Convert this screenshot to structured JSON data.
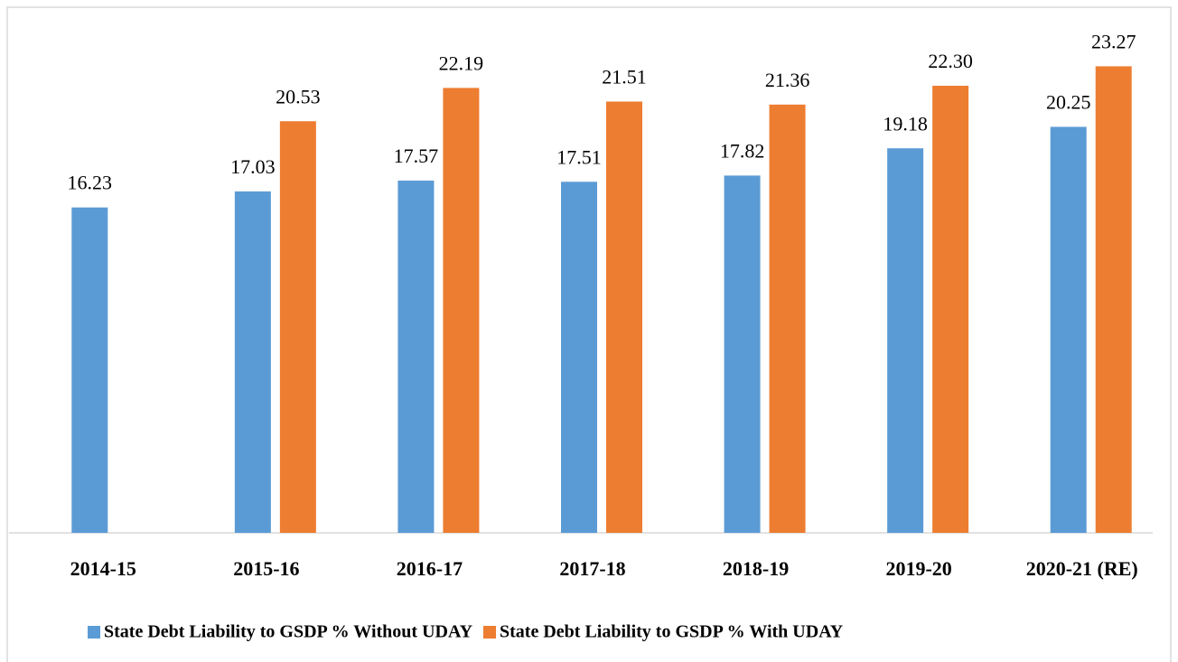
{
  "chart_data": {
    "type": "bar",
    "categories": [
      "2014-15",
      "2015-16",
      "2016-17",
      "2017-18",
      "2018-19",
      "2019-20",
      "2020-21 (RE)"
    ],
    "series": [
      {
        "name": "State Debt Liability to GSDP % Without UDAY",
        "color": "#5b9bd5",
        "values": [
          16.23,
          17.03,
          17.57,
          17.51,
          17.82,
          19.18,
          20.25
        ],
        "value_labels": [
          "16.23",
          "17.03",
          "17.57",
          "17.51",
          "17.82",
          "19.18",
          "20.25"
        ]
      },
      {
        "name": "State Debt Liability to GSDP % With UDAY",
        "color": "#ed7d31",
        "values": [
          null,
          20.53,
          22.19,
          21.51,
          21.36,
          22.3,
          23.27
        ],
        "value_labels": [
          null,
          "20.53",
          "22.19",
          "21.51",
          "21.36",
          "22.30",
          "23.27"
        ]
      }
    ],
    "ylim": [
      0,
      26
    ],
    "legend": "bottom"
  }
}
